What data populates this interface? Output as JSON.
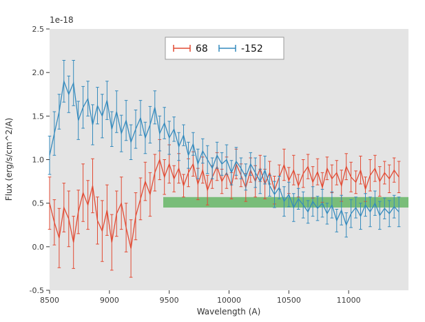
{
  "figure": {
    "offset_label": "1e-18",
    "xlabel": "Wavelength (A)",
    "ylabel": "Flux (erg/s/cm^2/A)",
    "background": "#ffffff",
    "plot_background": "#e4e4e4"
  },
  "legend": {
    "position": "upper center",
    "entries": [
      {
        "label": "68",
        "color": "#e24a33"
      },
      {
        "label": "-152",
        "color": "#348abd"
      }
    ]
  },
  "chart_data": {
    "type": "line",
    "title": "",
    "xlabel": "Wavelength (A)",
    "ylabel": "Flux (erg/s/cm^2/A)",
    "y_offset_factor": "1e-18",
    "xlim": [
      8500,
      11500
    ],
    "ylim": [
      -0.5,
      2.5
    ],
    "xticks": [
      8500,
      9000,
      9500,
      10000,
      10500,
      11000
    ],
    "yticks": [
      -0.5,
      0.0,
      0.5,
      1.0,
      1.5,
      2.0,
      2.5
    ],
    "grid": false,
    "legend_position": "upper center",
    "band": {
      "x0": 9450,
      "x1": 11500,
      "y0": 0.45,
      "y1": 0.57,
      "color": "#3fa73f",
      "opacity": 0.65
    },
    "x": [
      8500,
      8540,
      8580,
      8620,
      8660,
      8700,
      8740,
      8780,
      8820,
      8860,
      8900,
      8940,
      8980,
      9020,
      9060,
      9100,
      9140,
      9180,
      9220,
      9260,
      9300,
      9340,
      9380,
      9420,
      9460,
      9500,
      9540,
      9580,
      9620,
      9660,
      9700,
      9740,
      9780,
      9820,
      9860,
      9900,
      9940,
      9980,
      10020,
      10060,
      10100,
      10140,
      10180,
      10220,
      10260,
      10300,
      10340,
      10380,
      10420,
      10460,
      10500,
      10540,
      10580,
      10620,
      10660,
      10700,
      10740,
      10780,
      10820,
      10860,
      10900,
      10940,
      10980,
      11020,
      11060,
      11100,
      11140,
      11180,
      11220,
      11260,
      11300,
      11340,
      11380,
      11420
    ],
    "series": [
      {
        "name": "68",
        "color": "#e24a33",
        "values": [
          0.5,
          0.28,
          0.1,
          0.45,
          0.32,
          0.05,
          0.4,
          0.62,
          0.48,
          0.7,
          0.3,
          0.18,
          0.42,
          0.05,
          0.38,
          0.5,
          0.22,
          -0.02,
          0.35,
          0.55,
          0.75,
          0.6,
          0.85,
          1.0,
          0.8,
          0.95,
          0.78,
          0.9,
          0.7,
          0.85,
          0.95,
          0.72,
          0.88,
          0.65,
          0.8,
          0.92,
          0.75,
          0.85,
          0.7,
          0.95,
          0.82,
          0.68,
          0.88,
          0.75,
          0.9,
          0.72,
          0.85,
          0.65,
          0.8,
          0.94,
          0.76,
          0.88,
          0.7,
          0.84,
          0.92,
          0.74,
          0.86,
          0.68,
          0.9,
          0.78,
          0.85,
          0.7,
          0.92,
          0.8,
          0.74,
          0.88,
          0.66,
          0.82,
          0.9,
          0.75,
          0.85,
          0.78,
          0.88,
          0.8
        ],
        "yerr": [
          0.3,
          0.26,
          0.34,
          0.28,
          0.32,
          0.3,
          0.25,
          0.33,
          0.28,
          0.31,
          0.27,
          0.35,
          0.29,
          0.32,
          0.26,
          0.3,
          0.28,
          0.33,
          0.27,
          0.24,
          0.22,
          0.25,
          0.21,
          0.23,
          0.2,
          0.22,
          0.15,
          0.17,
          0.13,
          0.16,
          0.14,
          0.18,
          0.15,
          0.17,
          0.13,
          0.16,
          0.14,
          0.18,
          0.15,
          0.17,
          0.13,
          0.16,
          0.14,
          0.18,
          0.15,
          0.17,
          0.13,
          0.16,
          0.14,
          0.18,
          0.15,
          0.17,
          0.13,
          0.16,
          0.14,
          0.18,
          0.15,
          0.17,
          0.13,
          0.16,
          0.14,
          0.18,
          0.15,
          0.17,
          0.13,
          0.16,
          0.14,
          0.18,
          0.15,
          0.17,
          0.13,
          0.16,
          0.14,
          0.18
        ]
      },
      {
        "name": "-152",
        "color": "#348abd",
        "values": [
          1.05,
          1.3,
          1.55,
          1.9,
          1.75,
          1.88,
          1.45,
          1.6,
          1.7,
          1.4,
          1.62,
          1.5,
          1.68,
          1.35,
          1.55,
          1.3,
          1.45,
          1.2,
          1.35,
          1.48,
          1.25,
          1.4,
          1.6,
          1.3,
          1.42,
          1.25,
          1.35,
          1.15,
          1.28,
          1.05,
          1.18,
          0.95,
          1.1,
          1.0,
          0.9,
          1.05,
          0.95,
          1.0,
          0.85,
          0.98,
          0.9,
          0.8,
          0.95,
          0.85,
          0.75,
          0.88,
          0.7,
          0.6,
          0.68,
          0.52,
          0.6,
          0.45,
          0.55,
          0.48,
          0.4,
          0.52,
          0.44,
          0.5,
          0.38,
          0.48,
          0.3,
          0.42,
          0.25,
          0.38,
          0.45,
          0.35,
          0.48,
          0.4,
          0.5,
          0.36,
          0.44,
          0.38,
          0.46,
          0.4
        ],
        "yerr": [
          0.22,
          0.25,
          0.2,
          0.24,
          0.21,
          0.26,
          0.22,
          0.24,
          0.2,
          0.23,
          0.21,
          0.25,
          0.22,
          0.2,
          0.24,
          0.21,
          0.23,
          0.2,
          0.22,
          0.2,
          0.18,
          0.21,
          0.19,
          0.2,
          0.18,
          0.19,
          0.14,
          0.16,
          0.12,
          0.15,
          0.13,
          0.17,
          0.14,
          0.16,
          0.12,
          0.15,
          0.13,
          0.17,
          0.14,
          0.16,
          0.12,
          0.15,
          0.13,
          0.17,
          0.14,
          0.16,
          0.12,
          0.15,
          0.13,
          0.17,
          0.14,
          0.16,
          0.12,
          0.15,
          0.13,
          0.17,
          0.14,
          0.16,
          0.12,
          0.15,
          0.13,
          0.17,
          0.14,
          0.16,
          0.12,
          0.15,
          0.13,
          0.17,
          0.14,
          0.16,
          0.12,
          0.15,
          0.13,
          0.17
        ]
      }
    ]
  }
}
